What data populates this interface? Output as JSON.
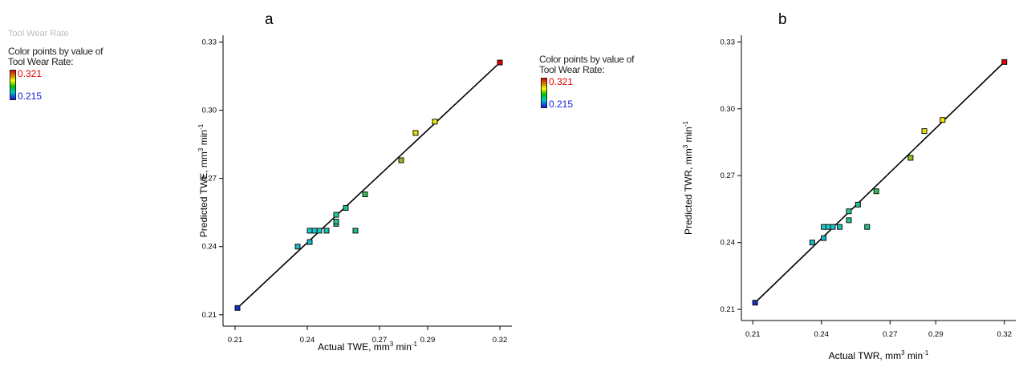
{
  "panel_labels": [
    "a",
    "b"
  ],
  "legend_left": {
    "faded_caption": "Tool Wear Rate",
    "caption_line1": "Color points by value of",
    "caption_line2": "Tool Wear Rate:",
    "max": "0.321",
    "min": "0.215"
  },
  "legend_mid": {
    "caption_line1": "Color points by value of",
    "caption_line2": "Tool Wear Rate:",
    "max": "0.321",
    "min": "0.215"
  },
  "colors": {
    "high": "#e00000",
    "mid": "#ffff00",
    "low": "#1a1adc"
  },
  "chart_data": [
    {
      "type": "scatter",
      "panel": "a",
      "xlabel": {
        "prefix": "Actual TWE, mm",
        "sup1": "3",
        "mid": " min",
        "sup2": "-1"
      },
      "ylabel": {
        "prefix": "Predicted TWE, mm",
        "sup1": "3",
        "mid": " min",
        "sup2": "-1"
      },
      "xlim": [
        0.205,
        0.325
      ],
      "ylim": [
        0.205,
        0.333
      ],
      "xticks": [
        0.21,
        0.24,
        0.27,
        0.29,
        0.32
      ],
      "xtick_labels": [
        "0.21",
        "0.24",
        "0.27",
        "0.29",
        "0.32"
      ],
      "yticks": [
        0.21,
        0.24,
        0.27,
        0.3,
        0.33
      ],
      "ytick_labels": [
        "0.21",
        "0.24",
        "0.27",
        "0.30",
        "0.33"
      ],
      "fit_line": [
        [
          0.211,
          0.213
        ],
        [
          0.32,
          0.321
        ]
      ],
      "points": [
        {
          "x": 0.211,
          "y": 0.213,
          "color": "#1030c8"
        },
        {
          "x": 0.236,
          "y": 0.24,
          "color": "#18b8c8"
        },
        {
          "x": 0.241,
          "y": 0.242,
          "color": "#18b8c8"
        },
        {
          "x": 0.241,
          "y": 0.247,
          "color": "#18c8c8"
        },
        {
          "x": 0.243,
          "y": 0.247,
          "color": "#18c8c8"
        },
        {
          "x": 0.245,
          "y": 0.247,
          "color": "#18c8c8"
        },
        {
          "x": 0.248,
          "y": 0.247,
          "color": "#18c0b0"
        },
        {
          "x": 0.252,
          "y": 0.25,
          "color": "#20c890"
        },
        {
          "x": 0.252,
          "y": 0.251,
          "color": "#20c890"
        },
        {
          "x": 0.252,
          "y": 0.254,
          "color": "#20c8a0"
        },
        {
          "x": 0.256,
          "y": 0.257,
          "color": "#20c080"
        },
        {
          "x": 0.26,
          "y": 0.247,
          "color": "#20c080"
        },
        {
          "x": 0.264,
          "y": 0.263,
          "color": "#30c050"
        },
        {
          "x": 0.279,
          "y": 0.278,
          "color": "#90c020"
        },
        {
          "x": 0.285,
          "y": 0.29,
          "color": "#e8e000"
        },
        {
          "x": 0.293,
          "y": 0.295,
          "color": "#f0e800"
        },
        {
          "x": 0.32,
          "y": 0.321,
          "color": "#e00000"
        }
      ]
    },
    {
      "type": "scatter",
      "panel": "b",
      "xlabel": {
        "prefix": "Actual TWR, mm",
        "sup1": "3",
        "mid": " min",
        "sup2": "-1"
      },
      "ylabel": {
        "prefix": "Predicted TWR, mm",
        "sup1": "3",
        "mid": " min",
        "sup2": "-1"
      },
      "xlim": [
        0.205,
        0.325
      ],
      "ylim": [
        0.205,
        0.333
      ],
      "xticks": [
        0.21,
        0.24,
        0.27,
        0.29,
        0.32
      ],
      "xtick_labels": [
        "0.21",
        "0.24",
        "0.27",
        "0.29",
        "0.32"
      ],
      "yticks": [
        0.21,
        0.24,
        0.27,
        0.3,
        0.33
      ],
      "ytick_labels": [
        "0.21",
        "0.24",
        "0.27",
        "0.30",
        "0.33"
      ],
      "fit_line": [
        [
          0.211,
          0.213
        ],
        [
          0.32,
          0.321
        ]
      ],
      "points": [
        {
          "x": 0.211,
          "y": 0.213,
          "color": "#1030c8"
        },
        {
          "x": 0.236,
          "y": 0.24,
          "color": "#18b8c8"
        },
        {
          "x": 0.241,
          "y": 0.242,
          "color": "#18b8c8"
        },
        {
          "x": 0.241,
          "y": 0.247,
          "color": "#18c8c8"
        },
        {
          "x": 0.243,
          "y": 0.247,
          "color": "#18c8c8"
        },
        {
          "x": 0.245,
          "y": 0.247,
          "color": "#18c8c8"
        },
        {
          "x": 0.248,
          "y": 0.247,
          "color": "#18c0b0"
        },
        {
          "x": 0.252,
          "y": 0.25,
          "color": "#20c890"
        },
        {
          "x": 0.252,
          "y": 0.254,
          "color": "#20c8a0"
        },
        {
          "x": 0.256,
          "y": 0.257,
          "color": "#20c080"
        },
        {
          "x": 0.26,
          "y": 0.247,
          "color": "#20c080"
        },
        {
          "x": 0.264,
          "y": 0.263,
          "color": "#30c050"
        },
        {
          "x": 0.279,
          "y": 0.278,
          "color": "#90c020"
        },
        {
          "x": 0.285,
          "y": 0.29,
          "color": "#e8e000"
        },
        {
          "x": 0.293,
          "y": 0.295,
          "color": "#f0e800"
        },
        {
          "x": 0.32,
          "y": 0.321,
          "color": "#e00000"
        }
      ]
    }
  ]
}
